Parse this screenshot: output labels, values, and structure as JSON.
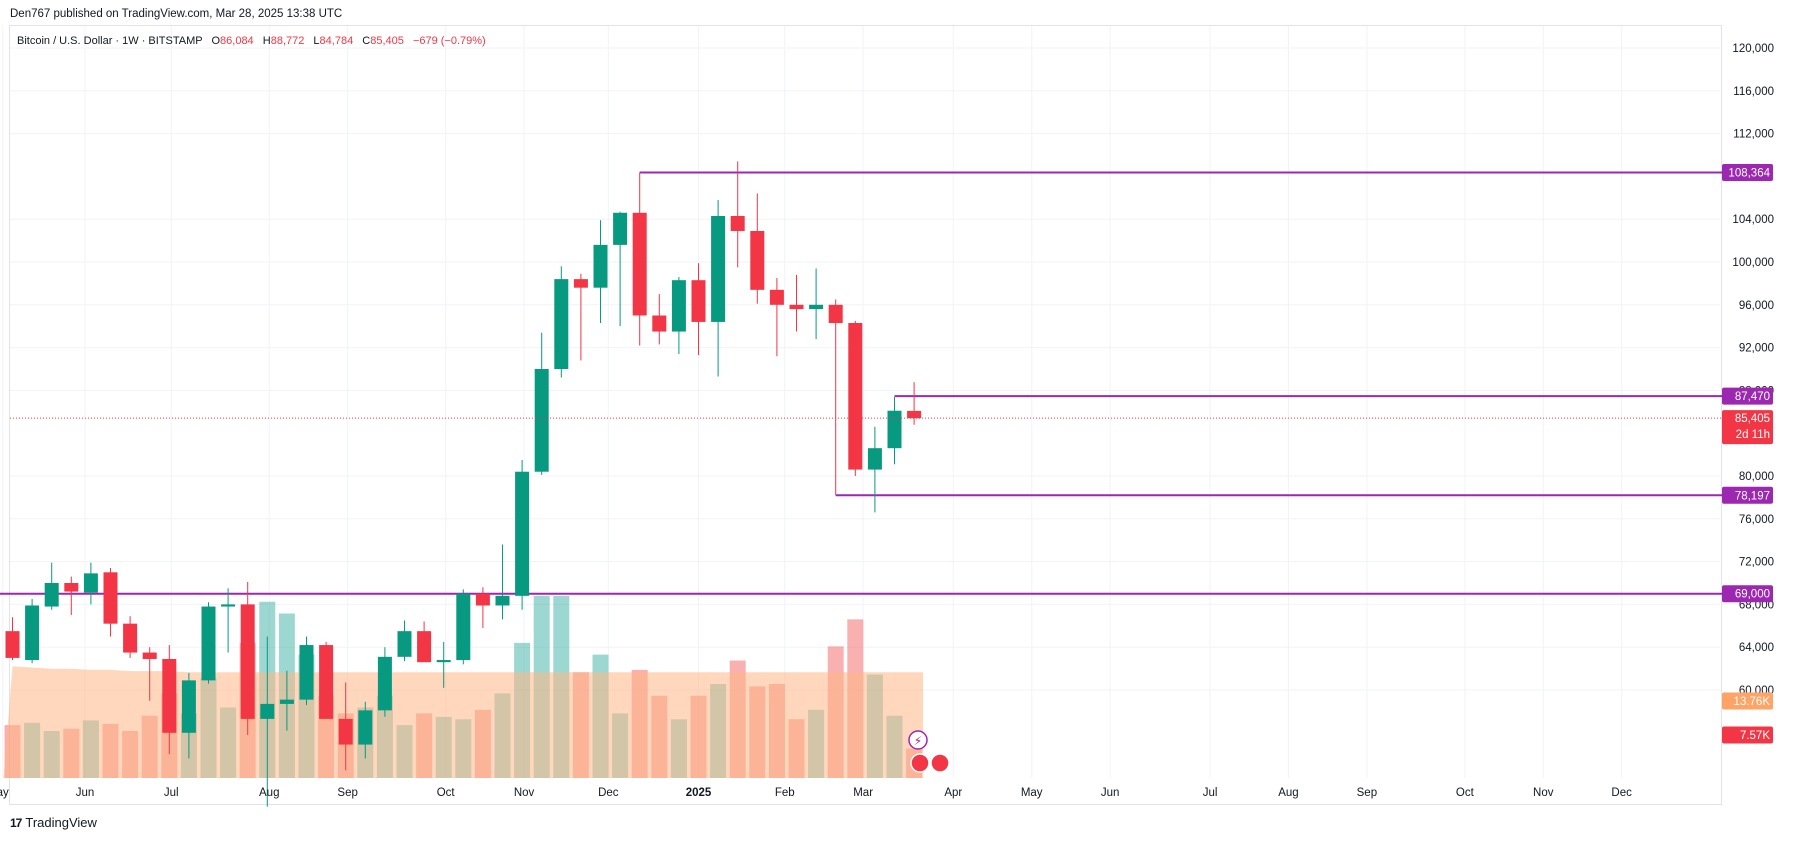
{
  "header": {
    "published": "Den767 published on TradingView.com, Mar 28, 2025 13:38 UTC"
  },
  "legend": {
    "symbol": "Bitcoin / U.S. Dollar · 1W · BITSTAMP",
    "o_label": "O",
    "o_value": "86,084",
    "h_label": "H",
    "h_value": "88,772",
    "l_label": "L",
    "l_value": "84,784",
    "c_label": "C",
    "c_value": "85,405",
    "change": "−679 (−0.79%)"
  },
  "footer": {
    "brand": "TradingView"
  },
  "colors": {
    "up": "#089981",
    "down": "#f23645",
    "vol_up": "#26a69a",
    "vol_down": "#ef5350",
    "hline": "#9c27b0",
    "vol_ma": "#ffb685"
  },
  "chart_data": {
    "type": "candlestick",
    "y_range": [
      56000,
      122000
    ],
    "y_ticks": [
      120000,
      116000,
      112000,
      104000,
      100000,
      96000,
      92000,
      88000,
      80000,
      76000,
      72000,
      68000,
      64000,
      60000
    ],
    "y_tick_labels": [
      "120,000",
      "116,000",
      "112,000",
      "104,000",
      "100,000",
      "96,000",
      "92,000",
      "88,000",
      "80,000",
      "76,000",
      "72,000",
      "68,000",
      "64,000",
      "60,000"
    ],
    "x_labels": [
      {
        "label": "ay",
        "week": -0.5
      },
      {
        "label": "Jun",
        "week": 3.7
      },
      {
        "label": "Jul",
        "week": 8.1
      },
      {
        "label": "Aug",
        "week": 13.1
      },
      {
        "label": "Sep",
        "week": 17.1
      },
      {
        "label": "Oct",
        "week": 22.1
      },
      {
        "label": "Nov",
        "week": 26.1
      },
      {
        "label": "Dec",
        "week": 30.4
      },
      {
        "label": "2025",
        "week": 35.0,
        "bold": true
      },
      {
        "label": "Feb",
        "week": 39.4
      },
      {
        "label": "Mar",
        "week": 43.4
      },
      {
        "label": "Apr",
        "week": 48.0
      },
      {
        "label": "May",
        "week": 52.0
      },
      {
        "label": "Jun",
        "week": 56.0
      },
      {
        "label": "Jul",
        "week": 61.1
      },
      {
        "label": "Aug",
        "week": 65.1
      },
      {
        "label": "Sep",
        "week": 69.1
      },
      {
        "label": "Oct",
        "week": 74.1
      },
      {
        "label": "Nov",
        "week": 78.1
      },
      {
        "label": "Dec",
        "week": 82.1
      }
    ],
    "candles": [
      {
        "o": 65500,
        "h": 66800,
        "l": 62800,
        "c": 63000,
        "v": 0.45
      },
      {
        "o": 62800,
        "h": 68500,
        "l": 62500,
        "c": 67900,
        "v": 0.47
      },
      {
        "o": 67800,
        "h": 71900,
        "l": 67500,
        "c": 70000,
        "v": 0.4
      },
      {
        "o": 70000,
        "h": 70600,
        "l": 67000,
        "c": 69200,
        "v": 0.42
      },
      {
        "o": 69100,
        "h": 71900,
        "l": 68000,
        "c": 70900,
        "v": 0.49
      },
      {
        "o": 71000,
        "h": 71400,
        "l": 65000,
        "c": 66200,
        "v": 0.46
      },
      {
        "o": 66200,
        "h": 66900,
        "l": 63000,
        "c": 63500,
        "v": 0.4
      },
      {
        "o": 63500,
        "h": 64000,
        "l": 59000,
        "c": 62900,
        "v": 0.53
      },
      {
        "o": 62900,
        "h": 64200,
        "l": 54000,
        "c": 56000,
        "v": 0.72
      },
      {
        "o": 56000,
        "h": 61600,
        "l": 53600,
        "c": 60900,
        "v": 0.55
      },
      {
        "o": 60900,
        "h": 68200,
        "l": 60600,
        "c": 67800,
        "v": 0.85
      },
      {
        "o": 67800,
        "h": 69500,
        "l": 63500,
        "c": 68000,
        "v": 0.6
      },
      {
        "o": 68000,
        "h": 70100,
        "l": 55800,
        "c": 57300,
        "v": 1.15
      },
      {
        "o": 57300,
        "h": 65000,
        "l": 49100,
        "c": 58700,
        "v": 1.5
      },
      {
        "o": 58700,
        "h": 61800,
        "l": 56200,
        "c": 59100,
        "v": 1.4
      },
      {
        "o": 59100,
        "h": 65000,
        "l": 58600,
        "c": 64200,
        "v": 1.05
      },
      {
        "o": 64200,
        "h": 64500,
        "l": 57800,
        "c": 57300,
        "v": 0.7
      },
      {
        "o": 57300,
        "h": 60700,
        "l": 52500,
        "c": 54900,
        "v": 0.55
      },
      {
        "o": 54900,
        "h": 58900,
        "l": 53600,
        "c": 58100,
        "v": 0.6
      },
      {
        "o": 58100,
        "h": 64000,
        "l": 57500,
        "c": 63100,
        "v": 0.7
      },
      {
        "o": 63100,
        "h": 66500,
        "l": 62700,
        "c": 65500,
        "v": 0.45
      },
      {
        "o": 65500,
        "h": 66400,
        "l": 62800,
        "c": 62600,
        "v": 0.55
      },
      {
        "o": 62600,
        "h": 64500,
        "l": 60200,
        "c": 62800,
        "v": 0.52
      },
      {
        "o": 62800,
        "h": 69400,
        "l": 62400,
        "c": 69000,
        "v": 0.5
      },
      {
        "o": 69000,
        "h": 69600,
        "l": 65800,
        "c": 67900,
        "v": 0.58
      },
      {
        "o": 67900,
        "h": 73600,
        "l": 66600,
        "c": 68800,
        "v": 0.72
      },
      {
        "o": 68800,
        "h": 81500,
        "l": 67500,
        "c": 80400,
        "v": 1.15
      },
      {
        "o": 80400,
        "h": 93400,
        "l": 80100,
        "c": 90000,
        "v": 1.55
      },
      {
        "o": 90000,
        "h": 99600,
        "l": 89200,
        "c": 98400,
        "v": 1.55
      },
      {
        "o": 98400,
        "h": 98900,
        "l": 90800,
        "c": 97600,
        "v": 0.9
      },
      {
        "o": 97600,
        "h": 103900,
        "l": 94300,
        "c": 101600,
        "v": 1.05
      },
      {
        "o": 101600,
        "h": 104700,
        "l": 94000,
        "c": 104600,
        "v": 0.55
      },
      {
        "o": 104600,
        "h": 108364,
        "l": 92200,
        "c": 95000,
        "v": 0.92
      },
      {
        "o": 95000,
        "h": 97000,
        "l": 92300,
        "c": 93500,
        "v": 0.7
      },
      {
        "o": 93500,
        "h": 98600,
        "l": 91400,
        "c": 98300,
        "v": 0.5
      },
      {
        "o": 98300,
        "h": 99900,
        "l": 91300,
        "c": 94400,
        "v": 0.7
      },
      {
        "o": 94400,
        "h": 105800,
        "l": 89300,
        "c": 104300,
        "v": 0.8
      },
      {
        "o": 104300,
        "h": 109400,
        "l": 99500,
        "c": 102900,
        "v": 1.0
      },
      {
        "o": 102900,
        "h": 106400,
        "l": 96100,
        "c": 97400,
        "v": 0.78
      },
      {
        "o": 97400,
        "h": 98500,
        "l": 91200,
        "c": 96000,
        "v": 0.8
      },
      {
        "o": 96000,
        "h": 98800,
        "l": 93500,
        "c": 95600,
        "v": 0.5
      },
      {
        "o": 95600,
        "h": 99400,
        "l": 92800,
        "c": 96000,
        "v": 0.58
      },
      {
        "o": 96000,
        "h": 96500,
        "l": 78197,
        "c": 94300,
        "v": 1.12
      },
      {
        "o": 94300,
        "h": 94500,
        "l": 80000,
        "c": 80600,
        "v": 1.35
      },
      {
        "o": 80600,
        "h": 84600,
        "l": 76600,
        "c": 82600,
        "v": 0.88
      },
      {
        "o": 82600,
        "h": 87400,
        "l": 81100,
        "c": 86100,
        "v": 0.53
      },
      {
        "o": 86084,
        "h": 88772,
        "l": 84784,
        "c": 85405,
        "v": 0.25
      }
    ],
    "volume_ma": [
      0.95,
      0.94,
      0.93,
      0.93,
      0.92,
      0.92,
      0.91,
      0.91,
      0.91,
      0.9,
      0.9,
      0.9,
      0.9,
      0.9,
      0.9,
      0.9,
      0.9,
      0.9,
      0.9,
      0.9,
      0.9,
      0.9,
      0.9,
      0.9,
      0.9,
      0.9,
      0.9,
      0.9,
      0.9,
      0.9,
      0.9,
      0.9,
      0.9,
      0.9,
      0.9,
      0.9,
      0.9,
      0.9,
      0.9,
      0.9,
      0.9,
      0.9,
      0.9,
      0.9,
      0.9,
      0.9,
      0.9
    ],
    "horizontal_levels": [
      {
        "price": 108364,
        "label": "108,364",
        "start_week": 32
      },
      {
        "price": 87470,
        "label": "87,470",
        "start_week": 45
      },
      {
        "price": 78197,
        "label": "78,197",
        "start_week": 42
      },
      {
        "price": 69000,
        "label": "69,000",
        "start_week": -1
      }
    ],
    "last_price": {
      "price": 85405,
      "label": "85,405",
      "countdown": "2d 11h"
    },
    "volume_labels": [
      {
        "label": "13.76K",
        "color": "#ffa366",
        "row": 0
      },
      {
        "label": "7.57K",
        "color": "#f23645",
        "row": 1
      }
    ]
  }
}
